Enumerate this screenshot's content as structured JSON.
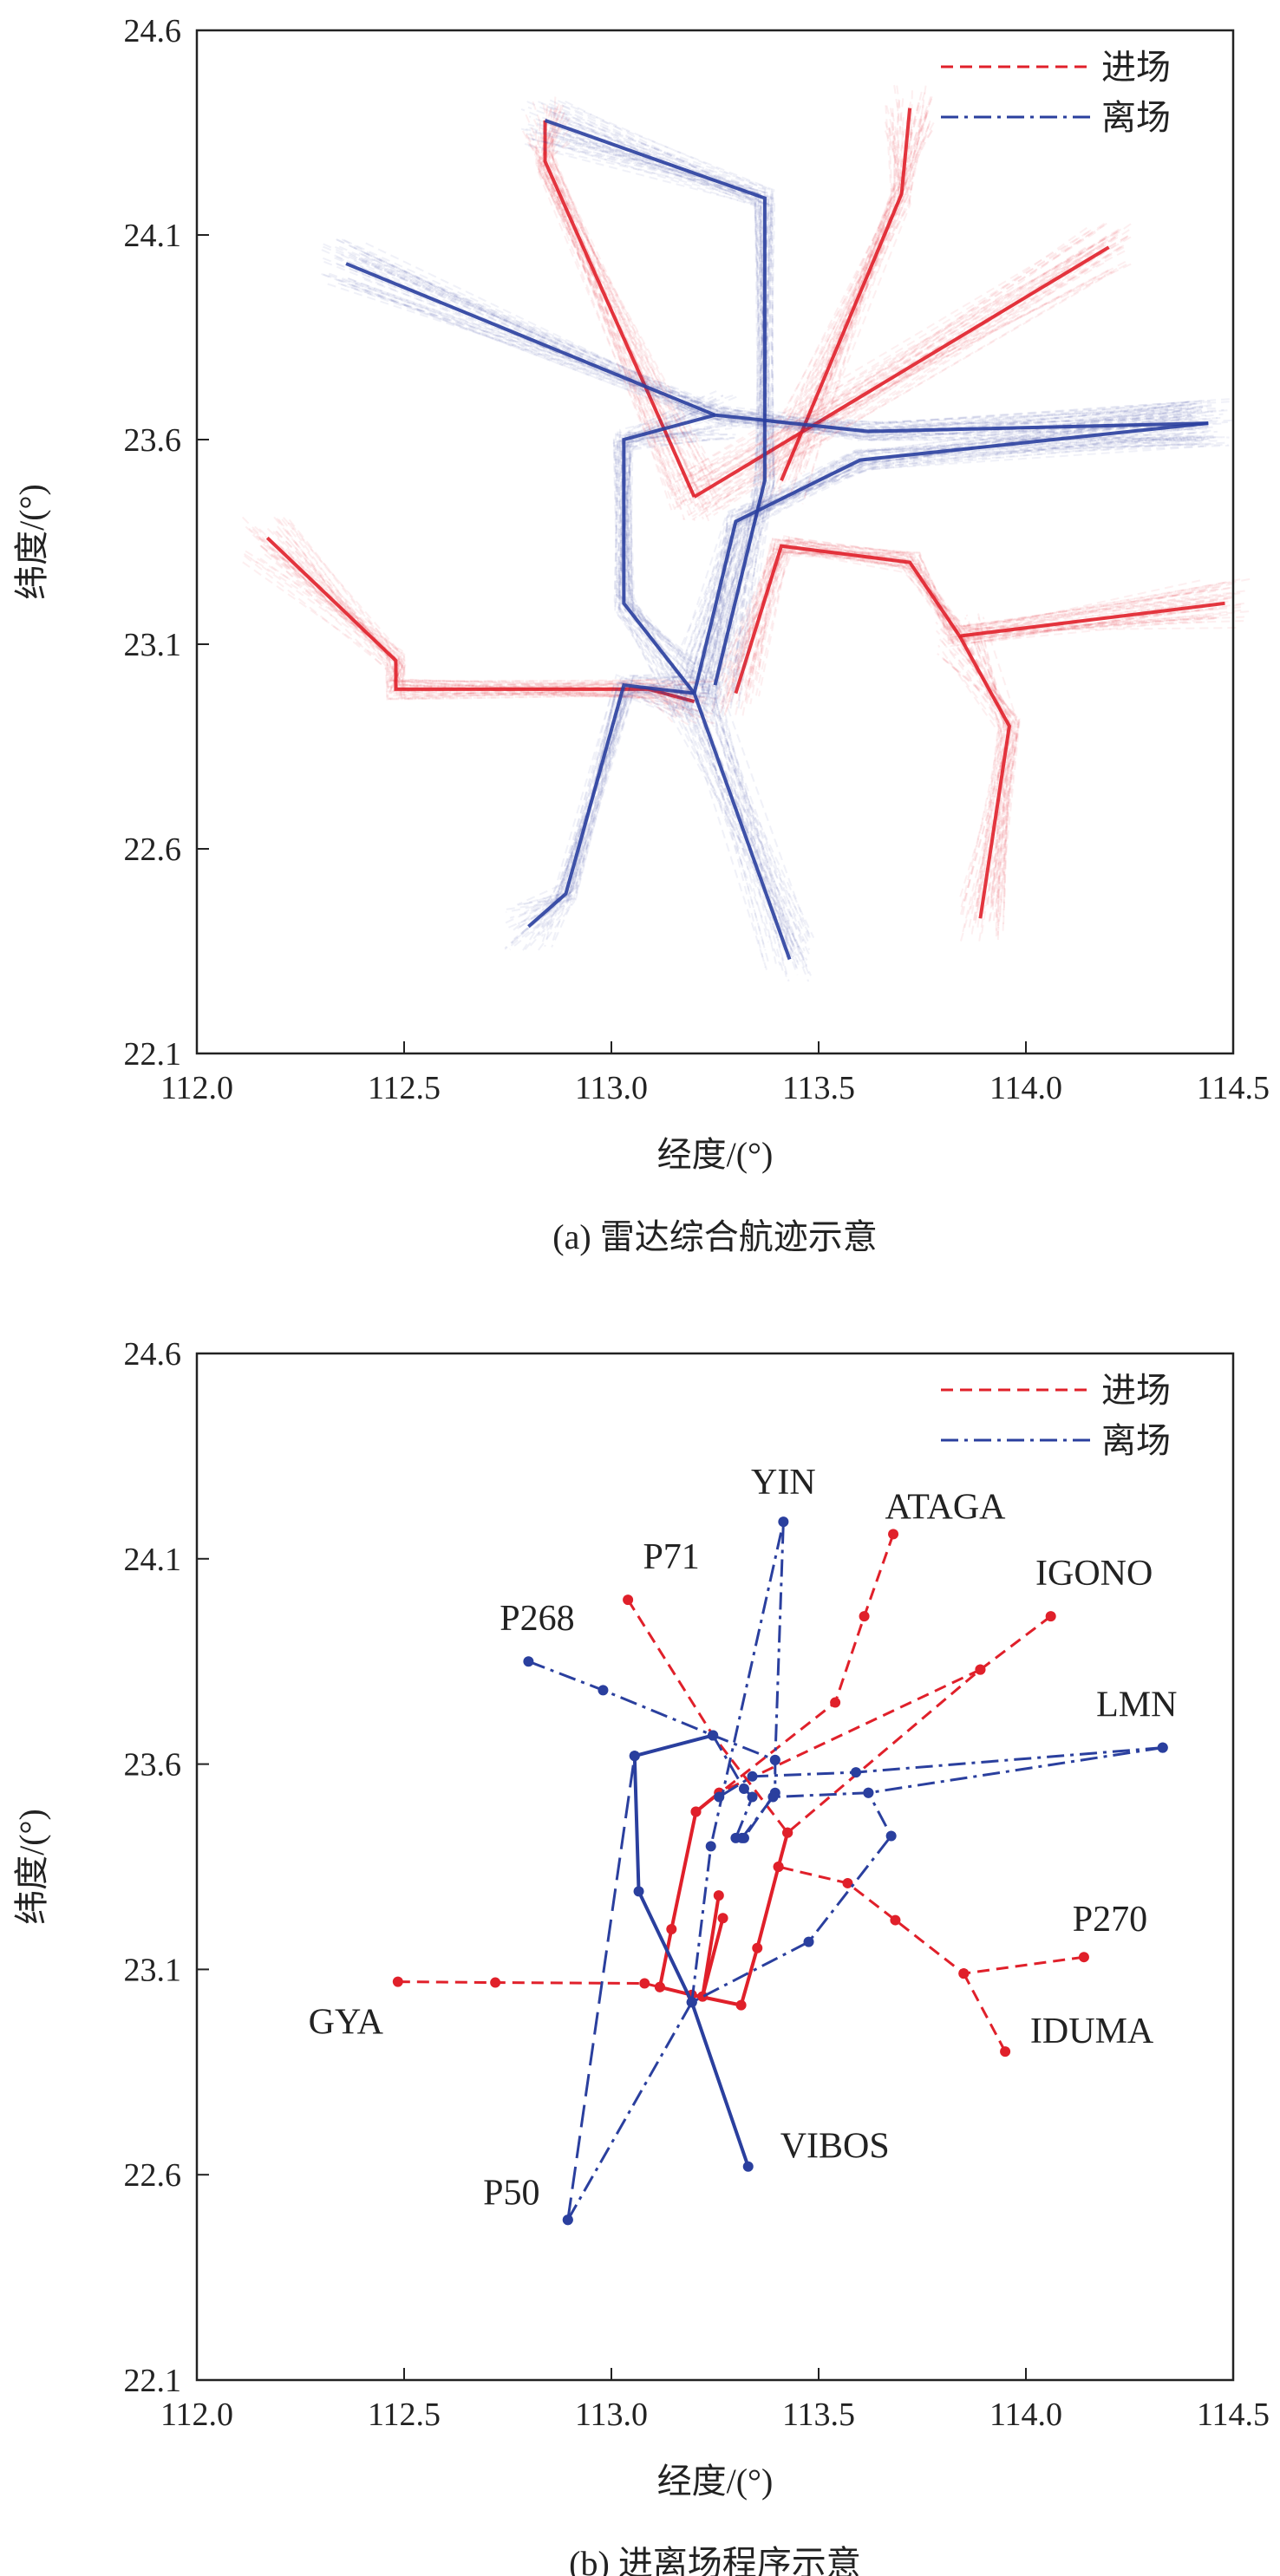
{
  "colors": {
    "arrival": "#e0202a",
    "departure": "#2a3f9e",
    "axis": "#222222"
  },
  "chart_data": [
    {
      "type": "line",
      "caption": "(a) 雷达综合航迹示意",
      "xlabel": "经度/(°)",
      "ylabel": "纬度/(°)",
      "xlim": [
        112.0,
        114.5
      ],
      "ylim": [
        22.1,
        24.6
      ],
      "xticks": [
        "112.0",
        "112.5",
        "113.0",
        "113.5",
        "114.0",
        "114.5"
      ],
      "yticks": [
        "22.1",
        "22.6",
        "23.1",
        "23.6",
        "24.1",
        "24.6"
      ],
      "grid": false,
      "legend_position": "top-right",
      "legend": [
        {
          "label": "进场",
          "style": "dashed",
          "color": "#e0202a"
        },
        {
          "label": "离场",
          "style": "dashdot",
          "color": "#2a3f9e"
        }
      ],
      "series": [
        {
          "kind": "arrival",
          "points": [
            [
              112.17,
              23.36
            ],
            [
              112.48,
              23.06
            ],
            [
              112.48,
              22.99
            ],
            [
              113.09,
              22.99
            ],
            [
              113.2,
              22.96
            ]
          ]
        },
        {
          "kind": "arrival",
          "points": [
            [
              112.84,
              24.38
            ],
            [
              112.84,
              24.28
            ],
            [
              113.2,
              23.46
            ]
          ]
        },
        {
          "kind": "arrival",
          "points": [
            [
              113.72,
              24.41
            ],
            [
              113.7,
              24.2
            ],
            [
              113.41,
              23.5
            ]
          ]
        },
        {
          "kind": "arrival",
          "points": [
            [
              114.2,
              24.07
            ],
            [
              113.2,
              23.46
            ]
          ]
        },
        {
          "kind": "arrival",
          "points": [
            [
              114.48,
              23.2
            ],
            [
              113.84,
              23.12
            ],
            [
              113.72,
              23.3
            ],
            [
              113.41,
              23.34
            ],
            [
              113.3,
              22.98
            ]
          ]
        },
        {
          "kind": "arrival",
          "points": [
            [
              113.89,
              22.43
            ],
            [
              113.96,
              22.9
            ],
            [
              113.84,
              23.12
            ]
          ]
        },
        {
          "kind": "departure",
          "points": [
            [
              113.25,
              23.0
            ],
            [
              113.37,
              23.5
            ],
            [
              113.37,
              24.19
            ],
            [
              112.84,
              24.38
            ]
          ]
        },
        {
          "kind": "departure",
          "points": [
            [
              112.36,
              24.03
            ],
            [
              113.25,
              23.66
            ],
            [
              113.62,
              23.62
            ],
            [
              114.44,
              23.64
            ]
          ]
        },
        {
          "kind": "departure",
          "points": [
            [
              113.2,
              22.98
            ],
            [
              113.03,
              23.0
            ],
            [
              112.89,
              22.49
            ],
            [
              112.8,
              22.41
            ]
          ]
        },
        {
          "kind": "departure",
          "points": [
            [
              113.2,
              22.98
            ],
            [
              113.03,
              23.2
            ],
            [
              113.03,
              23.6
            ],
            [
              113.25,
              23.66
            ]
          ]
        },
        {
          "kind": "departure",
          "points": [
            [
              113.2,
              22.98
            ],
            [
              113.43,
              22.33
            ]
          ]
        },
        {
          "kind": "departure",
          "points": [
            [
              113.2,
              22.98
            ],
            [
              113.3,
              23.4
            ],
            [
              113.6,
              23.55
            ],
            [
              114.44,
              23.64
            ]
          ]
        }
      ]
    },
    {
      "type": "line",
      "caption": "(b) 进离场程序示意",
      "xlabel": "经度/(°)",
      "ylabel": "纬度/(°)",
      "xlim": [
        112.0,
        114.5
      ],
      "ylim": [
        22.1,
        24.6
      ],
      "xticks": [
        "112.0",
        "112.5",
        "113.0",
        "113.5",
        "114.0",
        "114.5"
      ],
      "yticks": [
        "22.1",
        "22.6",
        "23.1",
        "23.6",
        "24.1",
        "24.6"
      ],
      "grid": false,
      "legend_position": "top-right",
      "legend": [
        {
          "label": "进场",
          "style": "dashed",
          "color": "#e0202a"
        },
        {
          "label": "离场",
          "style": "dashdot",
          "color": "#2a3f9e"
        }
      ],
      "waypoints": [
        {
          "name": "YIN",
          "lon": 113.415,
          "lat": 24.19
        },
        {
          "name": "ATAGA",
          "lon": 113.68,
          "lat": 24.16
        },
        {
          "name": "P71",
          "lon": 113.04,
          "lat": 24.0
        },
        {
          "name": "IGONO",
          "lon": 114.06,
          "lat": 23.96
        },
        {
          "name": "P268",
          "lon": 112.8,
          "lat": 23.85
        },
        {
          "name": "LMN",
          "lon": 114.33,
          "lat": 23.64
        },
        {
          "name": "P270",
          "lon": 114.14,
          "lat": 23.13
        },
        {
          "name": "GYA",
          "lon": 112.485,
          "lat": 23.07
        },
        {
          "name": "IDUMA",
          "lon": 113.95,
          "lat": 22.9
        },
        {
          "name": "VIBOS",
          "lon": 113.33,
          "lat": 22.62
        },
        {
          "name": "P50",
          "lon": 112.895,
          "lat": 22.49
        }
      ],
      "series": [
        {
          "kind": "arrival",
          "style": "dashed",
          "points": [
            [
              112.485,
              23.07
            ],
            [
              112.72,
              23.068
            ],
            [
              113.08,
              23.066
            ],
            [
              113.117,
              23.057
            ]
          ]
        },
        {
          "kind": "arrival",
          "style": "dashed",
          "points": [
            [
              113.04,
              24.0
            ],
            [
              113.245,
              23.67
            ],
            [
              113.425,
              23.433
            ]
          ]
        },
        {
          "kind": "arrival",
          "style": "dashed",
          "points": [
            [
              113.68,
              24.16
            ],
            [
              113.61,
              23.96
            ],
            [
              113.54,
              23.75
            ],
            [
              113.204,
              23.484
            ]
          ]
        },
        {
          "kind": "arrival",
          "style": "dashed",
          "points": [
            [
              114.06,
              23.96
            ],
            [
              113.89,
              23.83
            ],
            [
              113.425,
              23.433
            ]
          ]
        },
        {
          "kind": "arrival",
          "style": "dashed",
          "points": [
            [
              113.89,
              23.83
            ],
            [
              113.26,
              23.53
            ]
          ]
        },
        {
          "kind": "arrival",
          "style": "dashed",
          "points": [
            [
              114.14,
              23.13
            ],
            [
              113.85,
              23.09
            ],
            [
              113.685,
              23.22
            ],
            [
              113.57,
              23.31
            ],
            [
              113.403,
              23.35
            ]
          ]
        },
        {
          "kind": "arrival",
          "style": "dashed",
          "points": [
            [
              113.95,
              22.9
            ],
            [
              113.85,
              23.09
            ]
          ]
        },
        {
          "kind": "arrival",
          "style": "solid",
          "points": [
            [
              113.425,
              23.433
            ],
            [
              113.403,
              23.35
            ],
            [
              113.352,
              23.152
            ],
            [
              113.313,
              23.013
            ],
            [
              113.194,
              23.038
            ],
            [
              113.117,
              23.057
            ],
            [
              113.145,
              23.198
            ],
            [
              113.204,
              23.484
            ],
            [
              113.26,
              23.53
            ]
          ]
        },
        {
          "kind": "arrival",
          "style": "solid",
          "points": [
            [
              113.259,
              23.28
            ],
            [
              113.22,
              23.034
            ]
          ]
        },
        {
          "kind": "arrival",
          "style": "solid",
          "points": [
            [
              113.269,
              23.225
            ],
            [
              113.22,
              23.034
            ]
          ]
        },
        {
          "kind": "departure",
          "style": "dashdot",
          "points": [
            [
              113.194,
              23.02
            ],
            [
              113.24,
              23.4
            ],
            [
              113.415,
              24.19
            ],
            [
              113.395,
              23.61
            ],
            [
              113.395,
              23.53
            ],
            [
              113.32,
              23.42
            ]
          ]
        },
        {
          "kind": "departure",
          "style": "dashdot",
          "points": [
            [
              112.8,
              23.85
            ],
            [
              112.98,
              23.78
            ],
            [
              113.245,
              23.67
            ],
            [
              113.395,
              23.61
            ]
          ]
        },
        {
          "kind": "departure",
          "style": "dashdot",
          "points": [
            [
              113.245,
              23.67
            ],
            [
              113.32,
              23.54
            ],
            [
              113.34,
              23.52
            ],
            [
              113.3,
              23.42
            ]
          ]
        },
        {
          "kind": "departure",
          "style": "dashdot",
          "points": [
            [
              114.33,
              23.64
            ],
            [
              113.59,
              23.58
            ],
            [
              113.34,
              23.57
            ],
            [
              113.26,
              23.52
            ]
          ]
        },
        {
          "kind": "departure",
          "style": "dashdot",
          "points": [
            [
              114.33,
              23.64
            ],
            [
              113.62,
              23.53
            ],
            [
              113.39,
              23.52
            ],
            [
              113.315,
              23.42
            ]
          ]
        },
        {
          "kind": "departure",
          "style": "solid",
          "points": [
            [
              113.33,
              22.62
            ],
            [
              113.194,
              23.02
            ],
            [
              113.066,
              23.29
            ],
            [
              113.056,
              23.62
            ],
            [
              113.245,
              23.67
            ]
          ]
        },
        {
          "kind": "departure",
          "style": "dashed-long",
          "points": [
            [
              112.895,
              22.49
            ],
            [
              113.056,
              23.62
            ]
          ]
        },
        {
          "kind": "departure",
          "style": "dashdot",
          "points": [
            [
              112.895,
              22.49
            ],
            [
              113.194,
              23.02
            ],
            [
              113.476,
              23.167
            ],
            [
              113.675,
              23.425
            ],
            [
              113.62,
              23.53
            ]
          ]
        }
      ]
    }
  ]
}
